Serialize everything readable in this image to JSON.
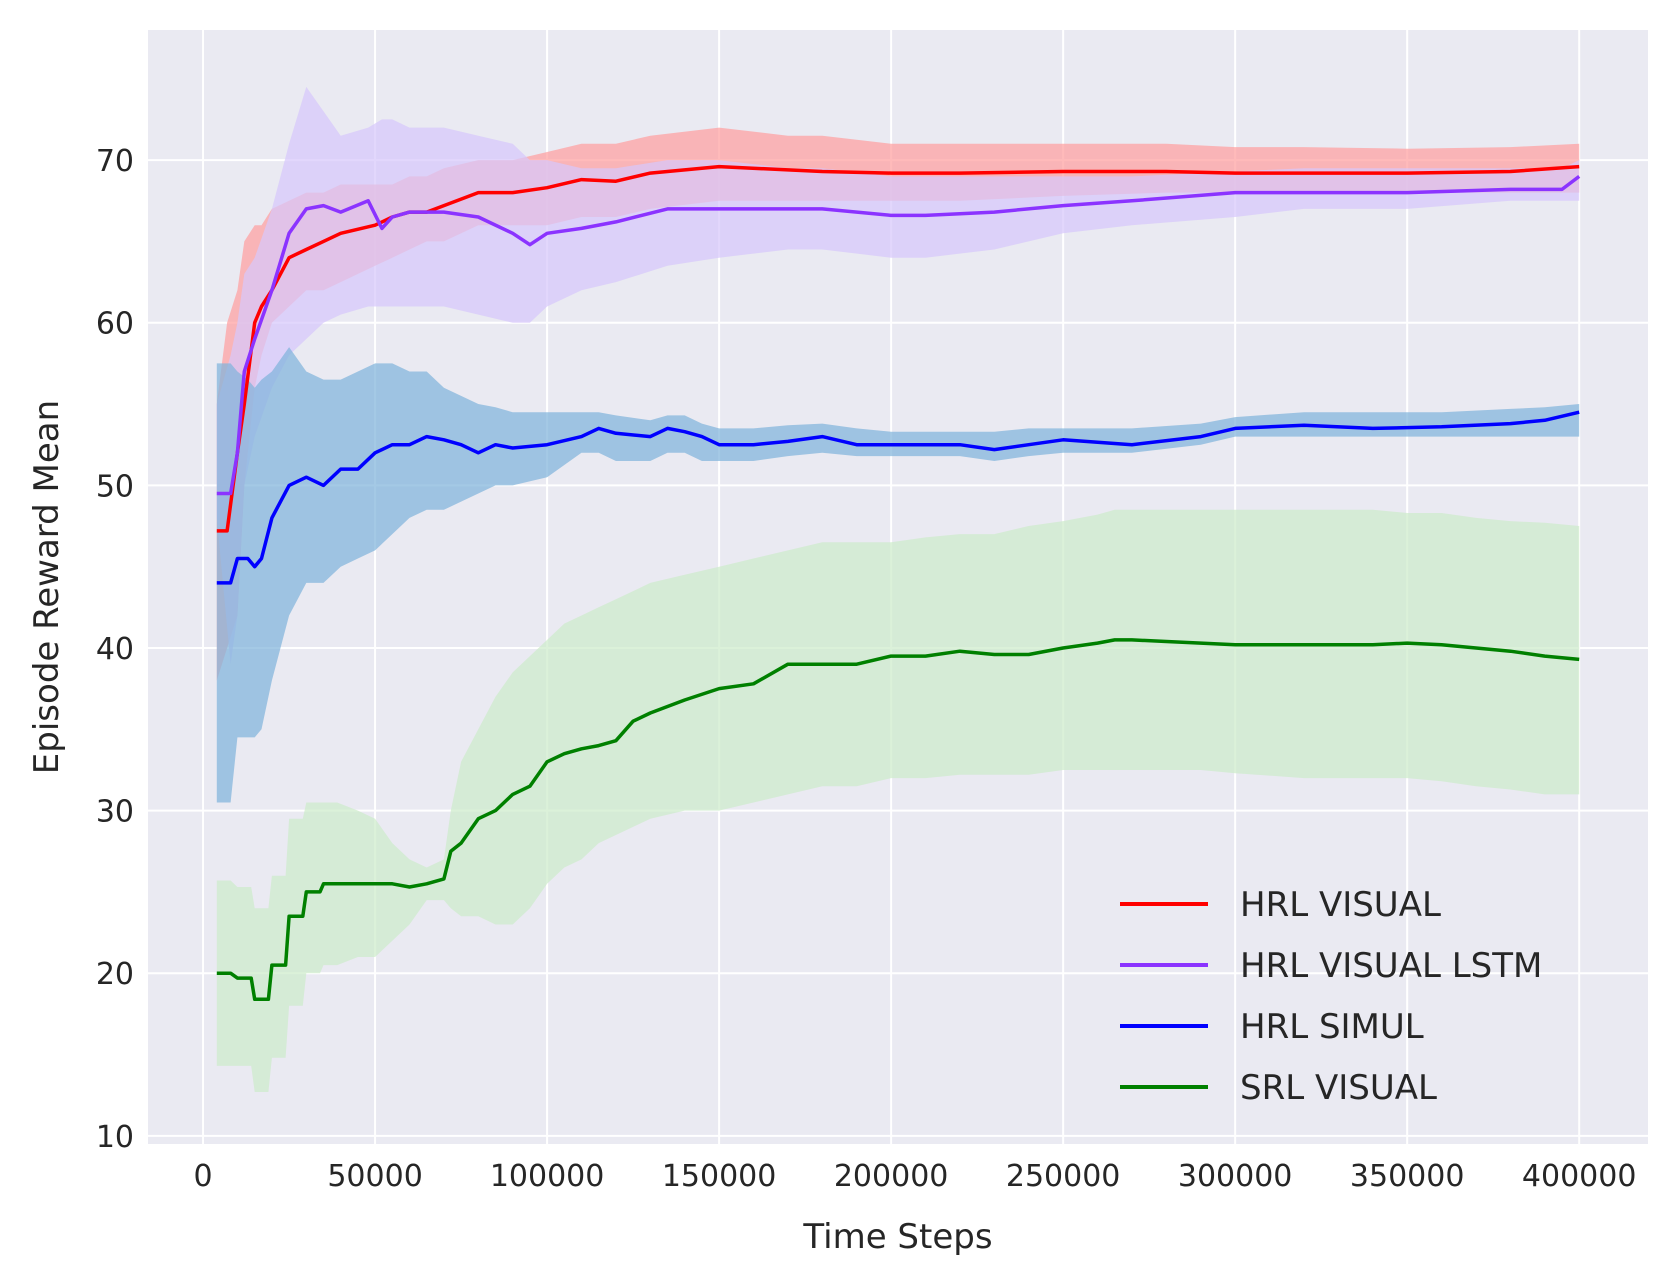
{
  "chart_data": {
    "type": "line",
    "title": "",
    "xlabel": "Time Steps",
    "ylabel": "Episode Reward Mean",
    "xlim": [
      -16000,
      420000
    ],
    "ylim": [
      9.5,
      78
    ],
    "xticks": [
      0,
      50000,
      100000,
      150000,
      200000,
      250000,
      300000,
      350000,
      400000
    ],
    "xtick_labels": [
      "0",
      "50000",
      "100000",
      "150000",
      "200000",
      "250000",
      "300000",
      "350000",
      "400000"
    ],
    "yticks": [
      10,
      20,
      30,
      40,
      50,
      60,
      70
    ],
    "ytick_labels": [
      "10",
      "20",
      "30",
      "40",
      "50",
      "60",
      "70"
    ],
    "grid": true,
    "background": "#eaeaf2",
    "grid_color": "#ffffff",
    "legend_position": "lower-right",
    "series": [
      {
        "name": "HRL VISUAL",
        "color": "#ff0000",
        "band_color": "#ff9f9f",
        "x": [
          4000,
          7000,
          10000,
          12000,
          15000,
          17000,
          20000,
          25000,
          30000,
          35000,
          40000,
          50000,
          55000,
          60000,
          65000,
          70000,
          80000,
          90000,
          100000,
          110000,
          120000,
          130000,
          150000,
          170000,
          180000,
          200000,
          220000,
          250000,
          280000,
          300000,
          320000,
          350000,
          380000,
          400000
        ],
        "mean": [
          47.2,
          47.2,
          52.0,
          55.0,
          60.0,
          61.0,
          62.0,
          64.0,
          64.5,
          65.0,
          65.5,
          66.0,
          66.5,
          66.8,
          66.8,
          67.2,
          68.0,
          68.0,
          68.3,
          68.8,
          68.7,
          69.2,
          69.6,
          69.4,
          69.3,
          69.2,
          69.2,
          69.3,
          69.3,
          69.2,
          69.2,
          69.2,
          69.3,
          69.6
        ],
        "lower": [
          38.0,
          40.0,
          42.0,
          50.0,
          56.0,
          58.0,
          60.0,
          61.0,
          62.0,
          62.0,
          62.5,
          63.5,
          64.0,
          64.5,
          65.0,
          65.0,
          66.0,
          66.0,
          66.0,
          66.5,
          66.5,
          67.0,
          67.5,
          67.5,
          67.5,
          67.5,
          67.5,
          67.8,
          68.0,
          68.0,
          68.0,
          68.0,
          68.0,
          68.0
        ],
        "upper": [
          55.0,
          60.0,
          62.0,
          65.0,
          66.0,
          66.0,
          67.0,
          67.5,
          68.0,
          68.0,
          68.5,
          68.5,
          68.5,
          69.0,
          69.0,
          69.5,
          70.0,
          70.0,
          70.5,
          71.0,
          71.0,
          71.5,
          72.0,
          71.5,
          71.5,
          71.0,
          71.0,
          71.0,
          71.0,
          70.8,
          70.8,
          70.7,
          70.8,
          71.0
        ]
      },
      {
        "name": "HRL VISUAL LSTM",
        "color": "#8b33ff",
        "band_color": "#d7c7fb",
        "x": [
          4000,
          8000,
          10000,
          12000,
          15000,
          20000,
          25000,
          30000,
          35000,
          40000,
          48000,
          52000,
          55000,
          60000,
          70000,
          80000,
          90000,
          95000,
          100000,
          110000,
          120000,
          135000,
          150000,
          170000,
          180000,
          200000,
          210000,
          230000,
          250000,
          270000,
          300000,
          320000,
          350000,
          380000,
          395000,
          400000
        ],
        "mean": [
          49.5,
          49.5,
          52.0,
          57.0,
          59.0,
          62.0,
          65.5,
          67.0,
          67.2,
          66.8,
          67.5,
          65.8,
          66.5,
          66.8,
          66.8,
          66.5,
          65.5,
          64.8,
          65.5,
          65.8,
          66.2,
          67.0,
          67.0,
          67.0,
          67.0,
          66.6,
          66.6,
          66.8,
          67.2,
          67.5,
          68.0,
          68.0,
          68.0,
          68.2,
          68.2,
          69.0
        ],
        "lower": [
          48.0,
          39.0,
          42.0,
          50.0,
          53.0,
          56.0,
          58.0,
          59.0,
          60.0,
          60.5,
          61.0,
          61.0,
          61.0,
          61.0,
          61.0,
          60.5,
          60.0,
          60.0,
          61.0,
          62.0,
          62.5,
          63.5,
          64.0,
          64.5,
          64.5,
          64.0,
          64.0,
          64.5,
          65.5,
          66.0,
          66.5,
          67.0,
          67.0,
          67.5,
          67.5,
          67.5
        ],
        "upper": [
          55.0,
          58.0,
          60.0,
          63.0,
          64.0,
          67.0,
          71.0,
          74.5,
          73.0,
          71.5,
          72.0,
          72.5,
          72.5,
          72.0,
          72.0,
          71.5,
          71.0,
          70.0,
          70.0,
          69.5,
          69.5,
          70.0,
          70.0,
          69.5,
          69.5,
          69.0,
          69.0,
          69.0,
          69.0,
          69.0,
          69.3,
          69.5,
          69.5,
          69.5,
          69.5,
          70.0
        ]
      },
      {
        "name": "HRL SIMUL",
        "color": "#0000ff",
        "band_color": "#81b4db",
        "x": [
          4000,
          8000,
          10000,
          13000,
          15000,
          17000,
          20000,
          25000,
          30000,
          35000,
          40000,
          45000,
          50000,
          55000,
          60000,
          65000,
          70000,
          75000,
          80000,
          85000,
          90000,
          100000,
          110000,
          115000,
          120000,
          130000,
          135000,
          140000,
          145000,
          150000,
          160000,
          170000,
          180000,
          190000,
          200000,
          220000,
          230000,
          240000,
          250000,
          270000,
          290000,
          300000,
          320000,
          340000,
          360000,
          380000,
          390000,
          400000
        ],
        "mean": [
          44.0,
          44.0,
          45.5,
          45.5,
          45.0,
          45.5,
          48.0,
          50.0,
          50.5,
          50.0,
          51.0,
          51.0,
          52.0,
          52.5,
          52.5,
          53.0,
          52.8,
          52.5,
          52.0,
          52.5,
          52.3,
          52.5,
          53.0,
          53.5,
          53.2,
          53.0,
          53.5,
          53.3,
          53.0,
          52.5,
          52.5,
          52.7,
          53.0,
          52.5,
          52.5,
          52.5,
          52.2,
          52.5,
          52.8,
          52.5,
          53.0,
          53.5,
          53.7,
          53.5,
          53.6,
          53.8,
          54.0,
          54.5
        ],
        "lower": [
          30.5,
          30.5,
          34.5,
          34.5,
          34.5,
          35.0,
          38.0,
          42.0,
          44.0,
          44.0,
          45.0,
          45.5,
          46.0,
          47.0,
          48.0,
          48.5,
          48.5,
          49.0,
          49.5,
          50.0,
          50.0,
          50.5,
          52.0,
          52.0,
          51.5,
          51.5,
          52.0,
          52.0,
          51.5,
          51.5,
          51.5,
          51.8,
          52.0,
          51.8,
          51.8,
          51.8,
          51.5,
          51.8,
          52.0,
          52.0,
          52.5,
          53.0,
          53.0,
          53.0,
          53.0,
          53.0,
          53.0,
          53.0
        ],
        "upper": [
          57.5,
          57.5,
          57.0,
          56.5,
          56.0,
          56.5,
          57.0,
          58.5,
          57.0,
          56.5,
          56.5,
          57.0,
          57.5,
          57.5,
          57.0,
          57.0,
          56.0,
          55.5,
          55.0,
          54.8,
          54.5,
          54.5,
          54.5,
          54.5,
          54.3,
          54.0,
          54.3,
          54.3,
          53.8,
          53.5,
          53.5,
          53.7,
          53.8,
          53.5,
          53.3,
          53.3,
          53.3,
          53.5,
          53.5,
          53.5,
          53.8,
          54.2,
          54.5,
          54.5,
          54.5,
          54.7,
          54.8,
          55.0
        ]
      },
      {
        "name": "SRL VISUAL",
        "color": "#008000",
        "band_color": "#cdeccb",
        "x": [
          4000,
          8000,
          10000,
          14000,
          15000,
          19000,
          20000,
          24000,
          25000,
          29000,
          30000,
          34000,
          35000,
          39000,
          45000,
          50000,
          55000,
          60000,
          65000,
          70000,
          72000,
          75000,
          80000,
          85000,
          90000,
          95000,
          100000,
          105000,
          110000,
          115000,
          120000,
          125000,
          130000,
          140000,
          150000,
          160000,
          170000,
          180000,
          190000,
          200000,
          210000,
          220000,
          230000,
          240000,
          250000,
          260000,
          265000,
          270000,
          280000,
          290000,
          300000,
          320000,
          340000,
          350000,
          360000,
          370000,
          380000,
          390000,
          400000
        ],
        "mean": [
          20.0,
          20.0,
          19.7,
          19.7,
          18.4,
          18.4,
          20.5,
          20.5,
          23.5,
          23.5,
          25.0,
          25.0,
          25.5,
          25.5,
          25.5,
          25.5,
          25.5,
          25.3,
          25.5,
          25.8,
          27.5,
          28.0,
          29.5,
          30.0,
          31.0,
          31.5,
          33.0,
          33.5,
          33.8,
          34.0,
          34.3,
          35.5,
          36.0,
          36.8,
          37.5,
          37.8,
          39.0,
          39.0,
          39.0,
          39.5,
          39.5,
          39.8,
          39.6,
          39.6,
          40.0,
          40.3,
          40.5,
          40.5,
          40.4,
          40.3,
          40.2,
          40.2,
          40.2,
          40.3,
          40.2,
          40.0,
          39.8,
          39.5,
          39.3
        ],
        "lower": [
          14.3,
          14.3,
          14.3,
          14.3,
          12.7,
          12.7,
          14.8,
          14.8,
          18.0,
          18.0,
          20.0,
          20.0,
          20.5,
          20.5,
          21.0,
          21.0,
          22.0,
          23.0,
          24.5,
          24.5,
          24.0,
          23.5,
          23.5,
          23.0,
          23.0,
          24.0,
          25.5,
          26.5,
          27.0,
          28.0,
          28.5,
          29.0,
          29.5,
          30.0,
          30.0,
          30.5,
          31.0,
          31.5,
          31.5,
          32.0,
          32.0,
          32.2,
          32.2,
          32.2,
          32.5,
          32.5,
          32.5,
          32.5,
          32.5,
          32.5,
          32.3,
          32.0,
          32.0,
          32.0,
          31.8,
          31.5,
          31.3,
          31.0,
          31.0
        ],
        "upper": [
          25.7,
          25.7,
          25.3,
          25.3,
          24.0,
          24.0,
          26.0,
          26.0,
          29.5,
          29.5,
          30.5,
          30.5,
          30.5,
          30.5,
          30.0,
          29.5,
          28.0,
          27.0,
          26.5,
          27.0,
          30.0,
          33.0,
          35.0,
          37.0,
          38.5,
          39.5,
          40.5,
          41.5,
          42.0,
          42.5,
          43.0,
          43.5,
          44.0,
          44.5,
          45.0,
          45.5,
          46.0,
          46.5,
          46.5,
          46.5,
          46.8,
          47.0,
          47.0,
          47.5,
          47.8,
          48.2,
          48.5,
          48.5,
          48.5,
          48.5,
          48.5,
          48.5,
          48.5,
          48.3,
          48.3,
          48.0,
          47.8,
          47.7,
          47.5
        ]
      }
    ]
  }
}
